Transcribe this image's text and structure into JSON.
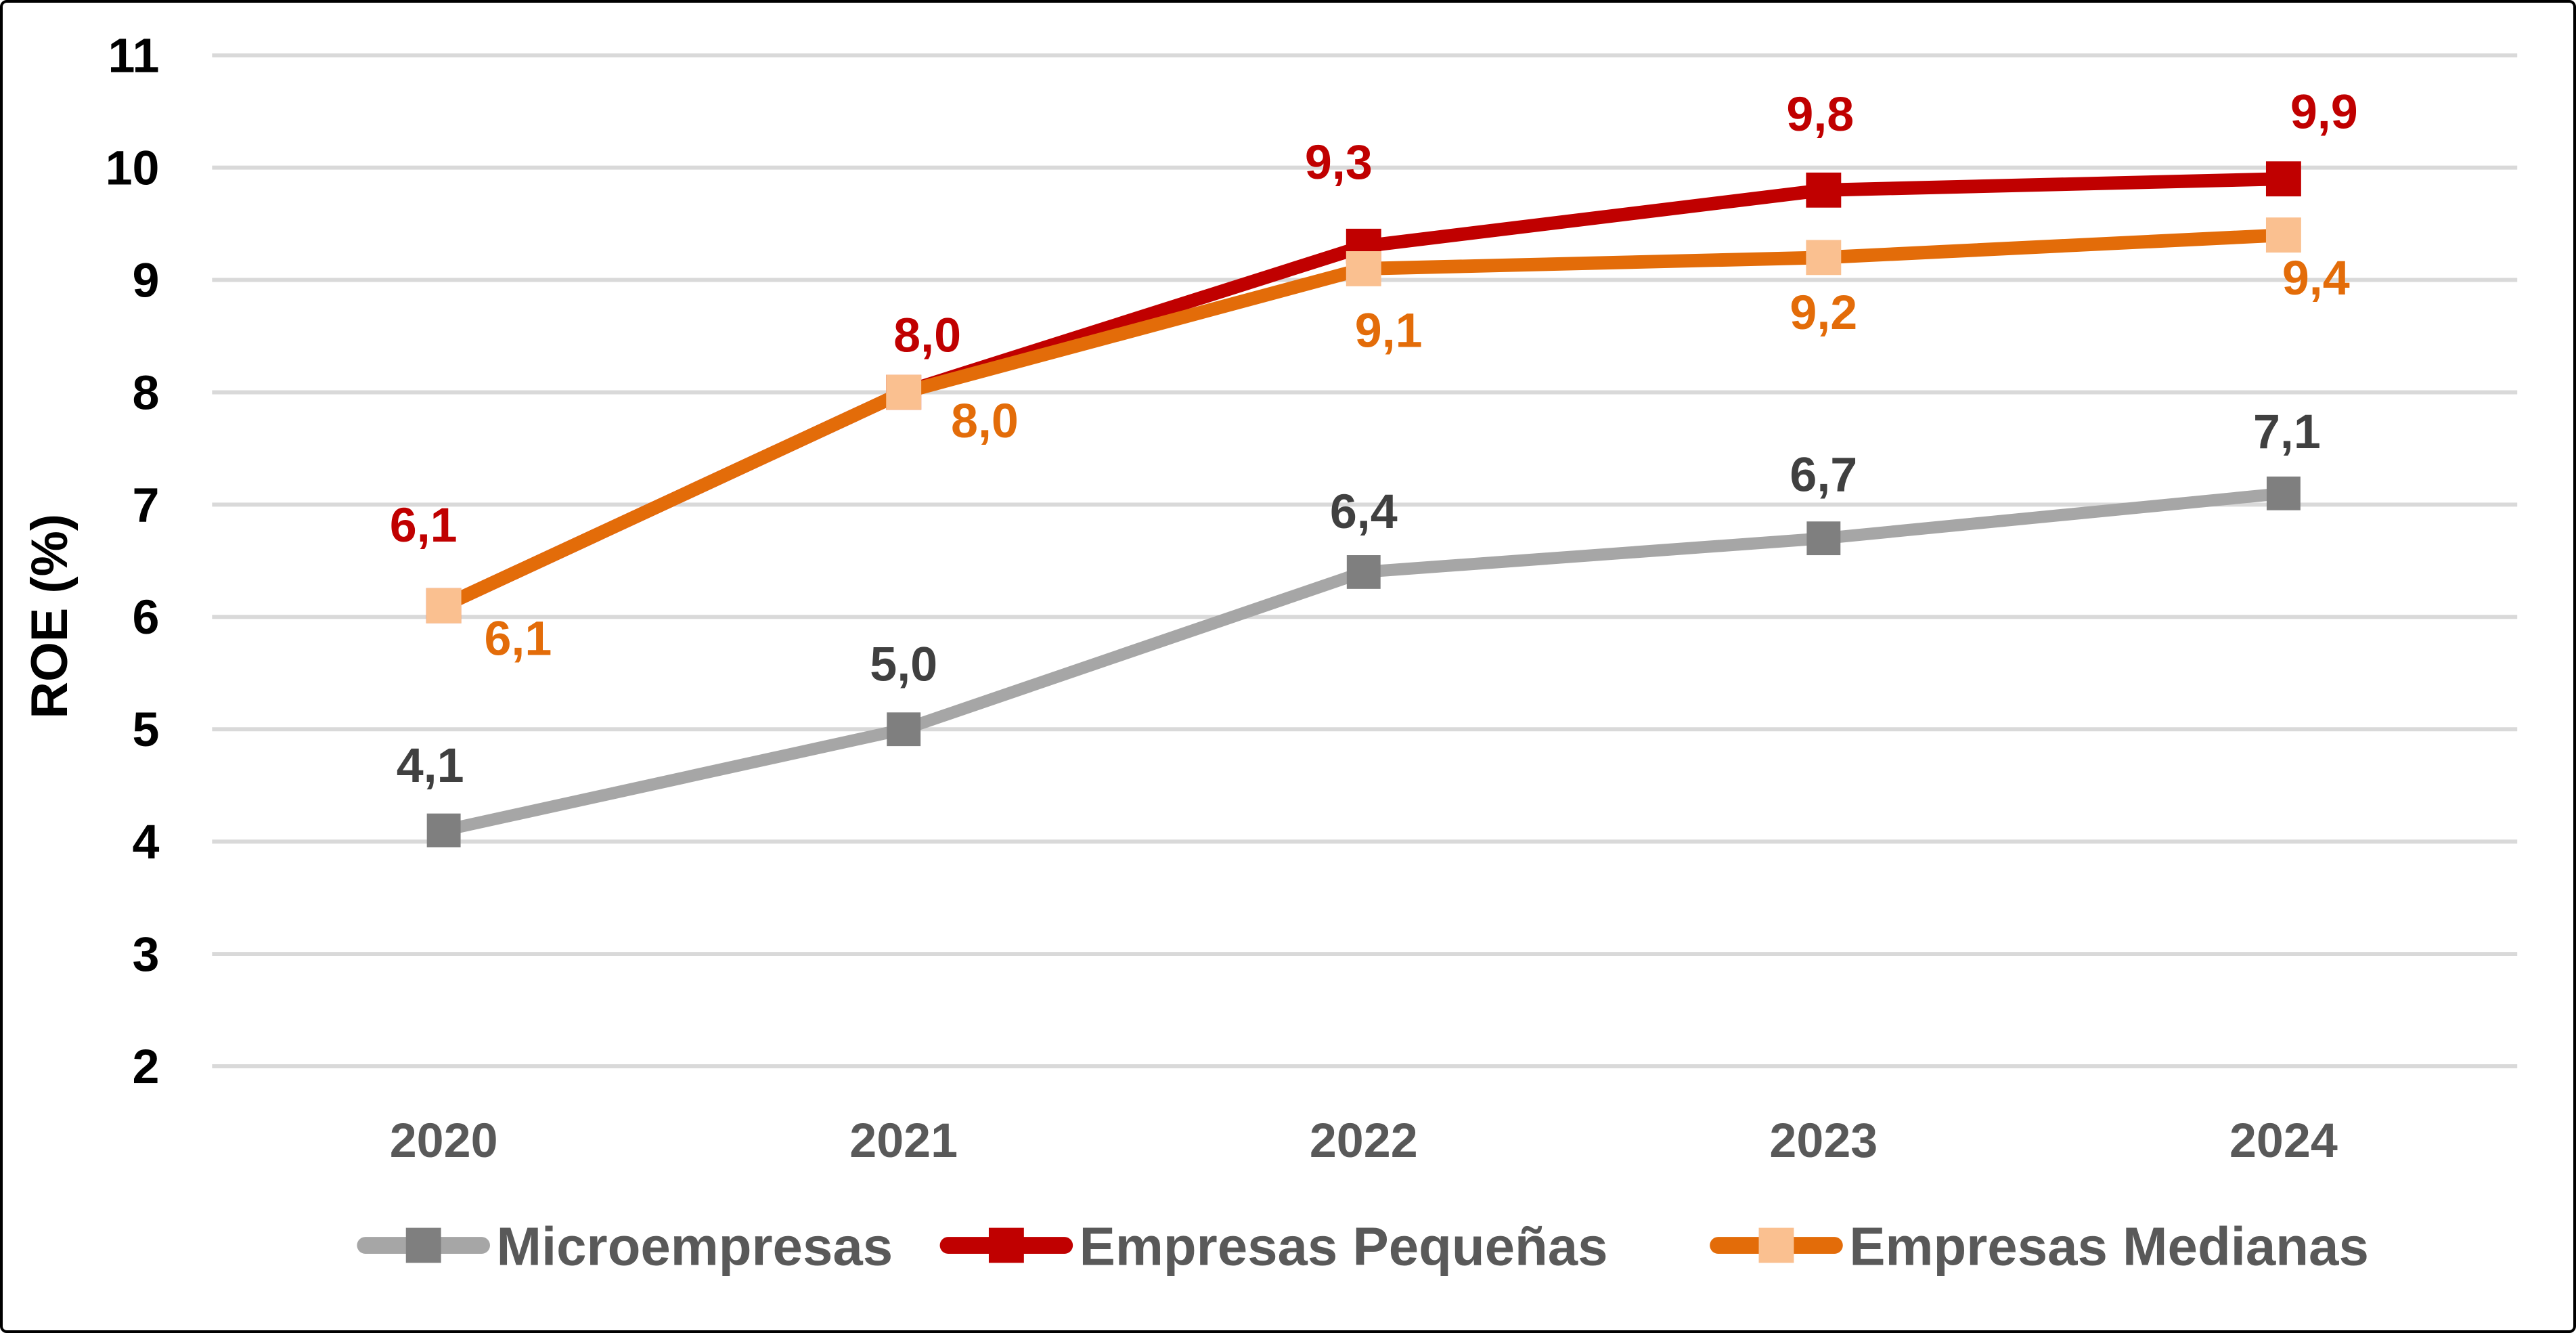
{
  "chart_data": {
    "type": "line",
    "categories": [
      "2020",
      "2021",
      "2022",
      "2023",
      "2024"
    ],
    "series": [
      {
        "name": "Microempresas",
        "values": [
          4.1,
          5.0,
          6.4,
          6.7,
          7.1
        ],
        "labels": [
          "4,1",
          "5,0",
          "6,4",
          "6,7",
          "7,1"
        ],
        "line_color": "#A6A6A6",
        "marker_color": "#7F7F7F",
        "label_color": "#404040",
        "label_position": "above"
      },
      {
        "name": "Empresas Pequeñas",
        "values": [
          6.1,
          8.0,
          9.3,
          9.8,
          9.9
        ],
        "labels": [
          "6,1",
          "8,0",
          "9,3",
          "9,8",
          "9,9"
        ],
        "line_color": "#C00000",
        "marker_color": "#C00000",
        "label_color": "#C00000",
        "label_position": "above"
      },
      {
        "name": "Empresas Medianas",
        "values": [
          6.1,
          8.0,
          9.1,
          9.2,
          9.4
        ],
        "labels": [
          "6,1",
          "8,0",
          "9,1",
          "9,2",
          "9,4"
        ],
        "line_color": "#E36C09",
        "marker_color": "#FAC090",
        "label_color": "#E36C09",
        "label_position": "below"
      }
    ],
    "ylabel": "ROE (%)",
    "y_ticks": [
      "11",
      "10",
      "9",
      "8",
      "7",
      "6",
      "5",
      "4",
      "3",
      "2"
    ],
    "ylim": [
      2,
      11
    ],
    "grid": true,
    "marker_shape": "square",
    "legend_position": "bottom",
    "colors": {
      "gridline": "#D9D9D9",
      "y_tick_label": "#000000",
      "x_tick_label": "#595959",
      "legend_text": "#595959",
      "background": "#FFFFFF"
    }
  }
}
